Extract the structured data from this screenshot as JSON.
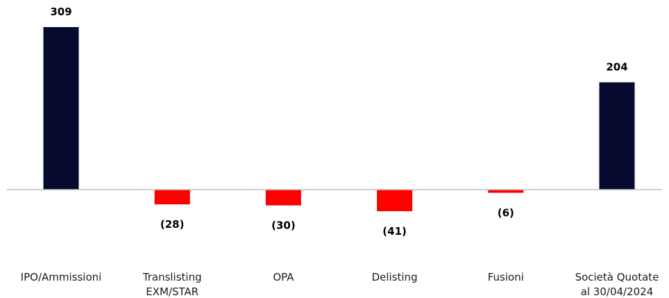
{
  "chart_data": {
    "type": "bar",
    "categories": [
      [
        "IPO/Ammissioni"
      ],
      [
        "Translisting",
        "EXM/STAR"
      ],
      [
        "OPA"
      ],
      [
        "Delisting"
      ],
      [
        "Fusioni"
      ],
      [
        "Società Quotate",
        "al 30/04/2024"
      ]
    ],
    "values": [
      309,
      -28,
      -30,
      -41,
      -6,
      204
    ],
    "value_labels": [
      "309",
      "(28)",
      "(30)",
      "(41)",
      "(6)",
      "204"
    ],
    "bar_colors": [
      "#050a2e",
      "#ff0000",
      "#ff0000",
      "#ff0000",
      "#ff0000",
      "#050a2e"
    ],
    "baseline_color": "#bfbfbf",
    "title": "",
    "xlabel": "",
    "ylabel": "",
    "ylim": [
      -60,
      330
    ],
    "grid": false,
    "legend": "none"
  }
}
